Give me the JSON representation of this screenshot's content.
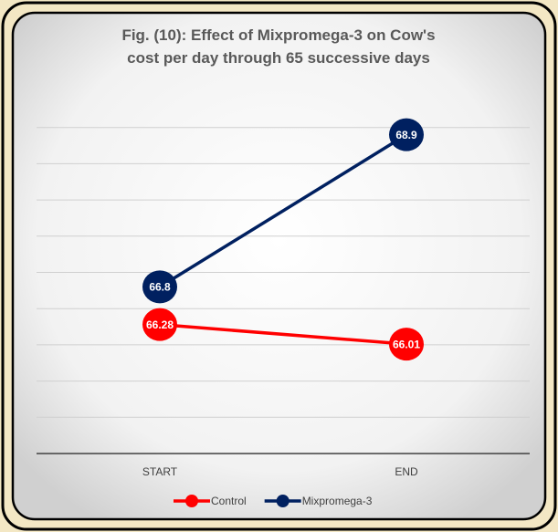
{
  "chart_data": {
    "type": "line",
    "title": "Fig. (10): Effect of Mixpromega-3 on Cow's cost per day through 65 successive days",
    "categories": [
      "START",
      "END"
    ],
    "series": [
      {
        "name": "Control",
        "color": "#ff0000",
        "values": [
          66.28,
          66.01
        ]
      },
      {
        "name": "Mixpromega-3",
        "color": "#002060",
        "values": [
          66.8,
          68.9
        ]
      }
    ],
    "ylim": [
      64.5,
      69.5
    ],
    "yticks": [
      65,
      65.5,
      66,
      66.5,
      67,
      67.5,
      68,
      68.5,
      69
    ],
    "grid": true,
    "legend": "bottom"
  }
}
